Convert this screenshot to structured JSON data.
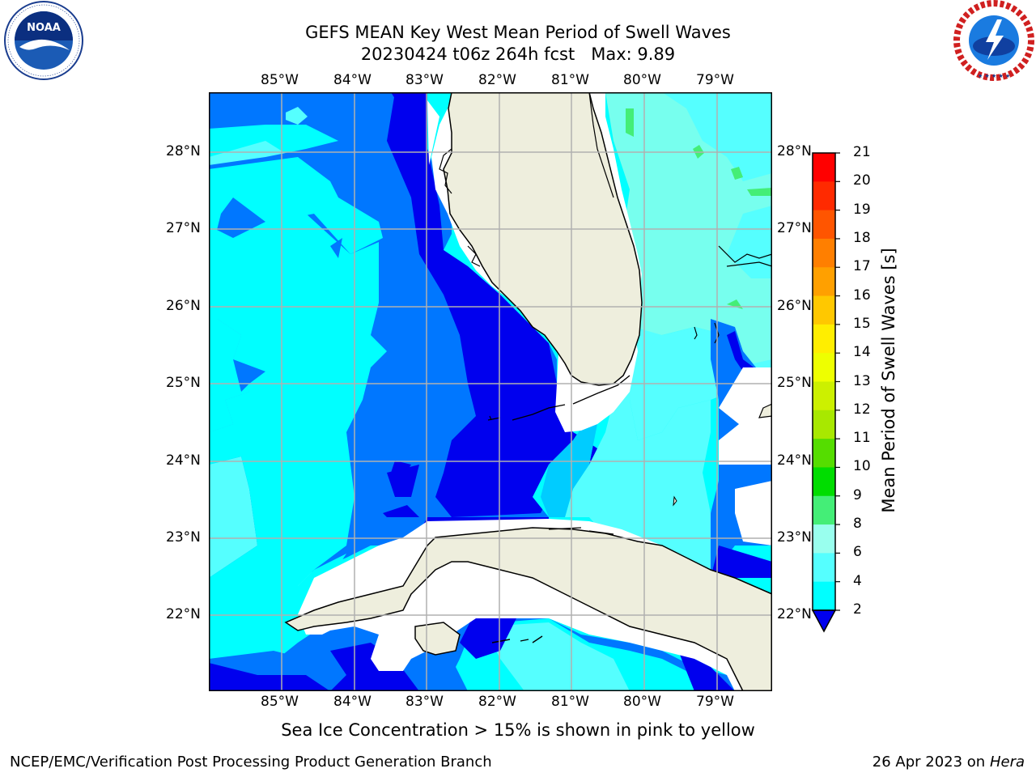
{
  "header": {
    "title_line1": "GEFS MEAN Key West Mean Period of Swell Waves",
    "title_line2": "20230424 t06z 264h fcst   Max: 9.89"
  },
  "logos": {
    "left": {
      "icon": "noaa-logo-icon",
      "text": "NOAA",
      "ring_text": "NATIONAL OCEANIC AND ATMOSPHERIC ADMINISTRATION · U.S. DEPARTMENT OF COMMERCE"
    },
    "right": {
      "icon": "nws-logo-icon",
      "ring_text": "NATIONAL WEATHER SERVICE"
    }
  },
  "map": {
    "lon_labels": [
      "85°W",
      "84°W",
      "83°W",
      "82°W",
      "81°W",
      "80°W",
      "79°W"
    ],
    "lat_labels": [
      "28°N",
      "27°N",
      "26°N",
      "25°N",
      "24°N",
      "23°N",
      "22°N"
    ],
    "colors": {
      "land": "#eeeedd",
      "grid": "#b0b0b0",
      "coast": "#000000"
    }
  },
  "colorbar": {
    "title": "Mean Period of Swell Waves [s]",
    "labels": [
      "21",
      "20",
      "19",
      "18",
      "17",
      "16",
      "15",
      "14",
      "13",
      "12",
      "11",
      "10",
      "9",
      "8",
      "6",
      "4",
      "2"
    ],
    "colors": [
      "#ff0000",
      "#ff2a00",
      "#ff5500",
      "#ff7f00",
      "#ffa000",
      "#ffc800",
      "#ffee00",
      "#eeff00",
      "#ccf000",
      "#a8e800",
      "#55dd00",
      "#00dd00",
      "#44ee77",
      "#99ffee",
      "#55ffff",
      "#00ffff",
      "#00ccff",
      "#0077ff"
    ],
    "under_color": "#0000ee"
  },
  "note": "Sea Ice Concentration > 15% is shown in pink to yellow",
  "footer": {
    "left": "NCEP/EMC/Verification Post Processing Product Generation Branch",
    "right_date": "26 Apr 2023 on ",
    "right_host": "Hera"
  }
}
